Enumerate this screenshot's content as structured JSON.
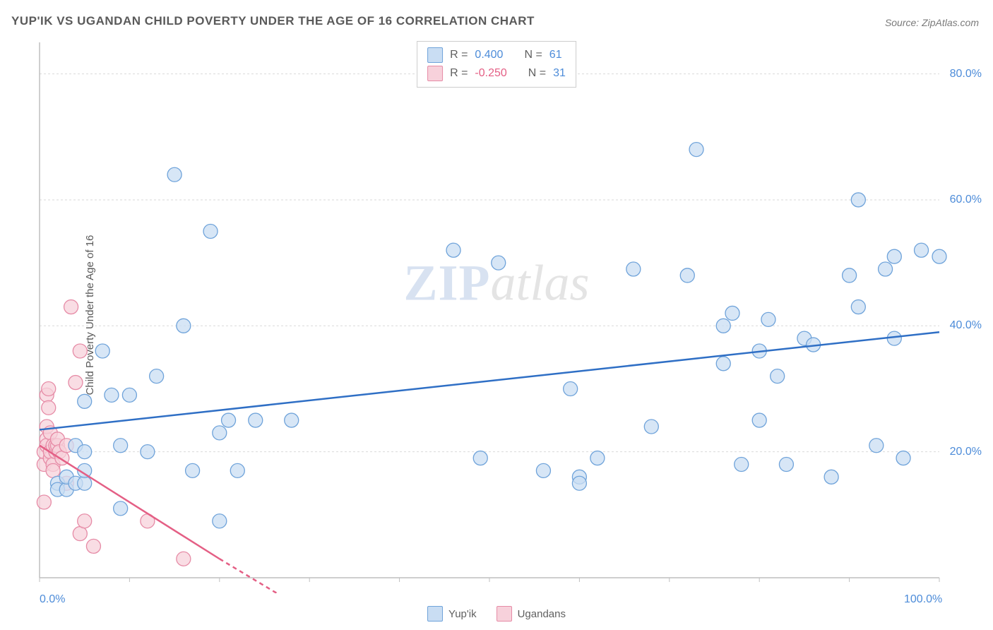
{
  "title": "YUP'IK VS UGANDAN CHILD POVERTY UNDER THE AGE OF 16 CORRELATION CHART",
  "source": "Source: ZipAtlas.com",
  "ylabel": "Child Poverty Under the Age of 16",
  "watermark": {
    "zip": "ZIP",
    "atlas": "atlas"
  },
  "colors": {
    "blue_fill": "#c9ddf3",
    "blue_stroke": "#6fa3da",
    "blue_line": "#2f6fc5",
    "blue_text": "#4d8cd9",
    "pink_fill": "#f7d1db",
    "pink_stroke": "#e68ba6",
    "pink_line": "#e45f85",
    "pink_text": "#e45f85",
    "grid": "#d9d9d9",
    "axis": "#bfbfbf",
    "tick": "#bfbfbf",
    "bg": "#ffffff"
  },
  "legend_top": {
    "series": [
      {
        "color_key": "blue",
        "r_label": "R =",
        "r_value": "0.400",
        "n_label": "N =",
        "n_value": "61"
      },
      {
        "color_key": "pink",
        "r_label": "R =",
        "r_value": "-0.250",
        "n_label": "N =",
        "n_value": "31"
      }
    ]
  },
  "legend_bottom": {
    "series": [
      {
        "color_key": "blue",
        "label": "Yup'ik"
      },
      {
        "color_key": "pink",
        "label": "Ugandans"
      }
    ]
  },
  "chart": {
    "type": "scatter",
    "xlim": [
      0,
      100
    ],
    "ylim": [
      0,
      85
    ],
    "marker_radius": 10,
    "marker_opacity": 0.75,
    "line_width": 2.5,
    "y_gridlines": [
      20,
      40,
      60,
      80
    ],
    "y_tick_labels": [
      "20.0%",
      "40.0%",
      "60.0%",
      "80.0%"
    ],
    "x_ticks_major": [
      0,
      100
    ],
    "x_tick_labels": [
      "0.0%",
      "100.0%"
    ],
    "x_ticks_minor_step": 10,
    "trend_lines": {
      "blue": {
        "x1": 0,
        "y1": 23.5,
        "x2": 100,
        "y2": 39
      },
      "pink_solid": {
        "x1": 0,
        "y1": 21,
        "x2": 20,
        "y2": 3
      },
      "pink_dashed": {
        "x1": 20,
        "y1": 3,
        "x2": 27,
        "y2": -3
      }
    },
    "series_blue": [
      [
        2,
        15
      ],
      [
        2,
        14
      ],
      [
        3,
        14
      ],
      [
        3,
        16
      ],
      [
        4,
        15
      ],
      [
        4,
        21
      ],
      [
        5,
        15
      ],
      [
        5,
        17
      ],
      [
        5,
        20
      ],
      [
        5,
        28
      ],
      [
        7,
        36
      ],
      [
        8,
        29
      ],
      [
        9,
        11
      ],
      [
        9,
        21
      ],
      [
        10,
        29
      ],
      [
        12,
        20
      ],
      [
        13,
        32
      ],
      [
        15,
        64
      ],
      [
        16,
        40
      ],
      [
        17,
        17
      ],
      [
        19,
        55
      ],
      [
        20,
        23
      ],
      [
        20,
        9
      ],
      [
        21,
        25
      ],
      [
        22,
        17
      ],
      [
        24,
        25
      ],
      [
        28,
        25
      ],
      [
        46,
        52
      ],
      [
        49,
        19
      ],
      [
        51,
        50
      ],
      [
        56,
        17
      ],
      [
        59,
        30
      ],
      [
        60,
        16
      ],
      [
        60,
        15
      ],
      [
        62,
        19
      ],
      [
        66,
        49
      ],
      [
        68,
        24
      ],
      [
        72,
        48
      ],
      [
        76,
        34
      ],
      [
        76,
        40
      ],
      [
        77,
        42
      ],
      [
        78,
        18
      ],
      [
        73,
        68
      ],
      [
        80,
        36
      ],
      [
        80,
        25
      ],
      [
        81,
        41
      ],
      [
        82,
        32
      ],
      [
        83,
        18
      ],
      [
        85,
        38
      ],
      [
        86,
        37
      ],
      [
        88,
        16
      ],
      [
        90,
        48
      ],
      [
        91,
        60
      ],
      [
        91,
        43
      ],
      [
        93,
        21
      ],
      [
        94,
        49
      ],
      [
        95,
        38
      ],
      [
        95,
        51
      ],
      [
        96,
        19
      ],
      [
        98,
        52
      ],
      [
        100,
        51
      ]
    ],
    "series_pink": [
      [
        0.5,
        12
      ],
      [
        0.5,
        18
      ],
      [
        0.5,
        20
      ],
      [
        0.8,
        22
      ],
      [
        0.8,
        21
      ],
      [
        0.8,
        24
      ],
      [
        0.8,
        29
      ],
      [
        1,
        27
      ],
      [
        1,
        30
      ],
      [
        1.2,
        19
      ],
      [
        1.2,
        20
      ],
      [
        1.2,
        23
      ],
      [
        1.5,
        21
      ],
      [
        1.5,
        18
      ],
      [
        1.5,
        17
      ],
      [
        1.8,
        20
      ],
      [
        1.8,
        21
      ],
      [
        2,
        21
      ],
      [
        2,
        22
      ],
      [
        2.2,
        20
      ],
      [
        2.5,
        19
      ],
      [
        3,
        21
      ],
      [
        3,
        15
      ],
      [
        3.5,
        43
      ],
      [
        4,
        31
      ],
      [
        4.5,
        36
      ],
      [
        4.5,
        7
      ],
      [
        5,
        9
      ],
      [
        6,
        5
      ],
      [
        12,
        9
      ],
      [
        16,
        3
      ]
    ]
  }
}
